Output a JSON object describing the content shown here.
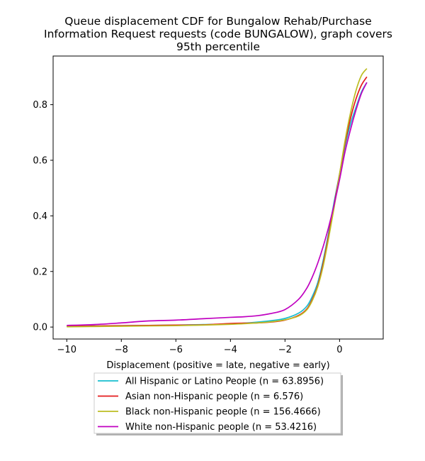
{
  "chart_data": {
    "type": "line",
    "title_lines": [
      "Queue displacement CDF for Bungalow Rehab/Purchase",
      "Information Request  requests (code BUNGALOW), graph covers",
      "95th percentile"
    ],
    "xlabel": "Displacement (positive = late, negative = early)",
    "ylabel": "",
    "xlim": [
      -10.5,
      1.6
    ],
    "ylim": [
      -0.043,
      0.975
    ],
    "xticks": [
      -10,
      -8,
      -6,
      -4,
      -2,
      0
    ],
    "yticks": [
      0.0,
      0.2,
      0.4,
      0.6,
      0.8
    ],
    "grid": false,
    "legend_position": "below-plot",
    "series": [
      {
        "name": "All Hispanic or Latino People (n = 63.8956)",
        "color": "#17becf",
        "x": [
          -10,
          -9,
          -8,
          -7,
          -6,
          -5,
          -4,
          -3.5,
          -3,
          -2.5,
          -2,
          -1.5,
          -1.2,
          -1,
          -0.8,
          -0.6,
          -0.4,
          -0.2,
          0,
          0.2,
          0.4,
          0.6,
          0.8,
          1.0
        ],
        "y": [
          0.003,
          0.004,
          0.005,
          0.006,
          0.007,
          0.009,
          0.011,
          0.014,
          0.018,
          0.023,
          0.031,
          0.05,
          0.075,
          0.11,
          0.16,
          0.24,
          0.34,
          0.45,
          0.55,
          0.65,
          0.73,
          0.79,
          0.845,
          0.88
        ]
      },
      {
        "name": "Asian non-Hispanic people (n = 6.576)",
        "color": "#e41a1c",
        "x": [
          -10,
          -9,
          -8,
          -7,
          -6,
          -5,
          -4,
          -3.5,
          -3,
          -2.5,
          -2,
          -1.5,
          -1.2,
          -1,
          -0.8,
          -0.6,
          -0.4,
          -0.2,
          0,
          0.2,
          0.4,
          0.6,
          0.8,
          1.0
        ],
        "y": [
          0.003,
          0.004,
          0.005,
          0.006,
          0.007,
          0.008,
          0.013,
          0.014,
          0.015,
          0.018,
          0.025,
          0.042,
          0.065,
          0.1,
          0.15,
          0.23,
          0.33,
          0.44,
          0.55,
          0.66,
          0.75,
          0.82,
          0.87,
          0.9
        ]
      },
      {
        "name": "Black non-Hispanic people (n = 156.4666)",
        "color": "#bcbd22",
        "x": [
          -10,
          -9,
          -8,
          -7,
          -6,
          -5,
          -4,
          -3.5,
          -3,
          -2.5,
          -2,
          -1.5,
          -1.2,
          -1,
          -0.8,
          -0.6,
          -0.4,
          -0.2,
          0,
          0.2,
          0.4,
          0.6,
          0.8,
          1.0
        ],
        "y": [
          0.001,
          0.002,
          0.003,
          0.004,
          0.005,
          0.007,
          0.01,
          0.012,
          0.015,
          0.019,
          0.026,
          0.04,
          0.062,
          0.095,
          0.145,
          0.22,
          0.32,
          0.43,
          0.55,
          0.67,
          0.77,
          0.85,
          0.905,
          0.93
        ]
      },
      {
        "name": "White non-Hispanic people (n = 53.4216)",
        "color": "#c000c0",
        "x": [
          -10,
          -9,
          -8,
          -7,
          -6,
          -5,
          -4,
          -3.5,
          -3,
          -2.5,
          -2,
          -1.5,
          -1.2,
          -1,
          -0.8,
          -0.6,
          -0.4,
          -0.2,
          0,
          0.2,
          0.4,
          0.6,
          0.8,
          1.0
        ],
        "y": [
          0.006,
          0.009,
          0.015,
          0.022,
          0.025,
          0.03,
          0.035,
          0.037,
          0.041,
          0.049,
          0.063,
          0.1,
          0.14,
          0.18,
          0.23,
          0.29,
          0.36,
          0.44,
          0.53,
          0.63,
          0.71,
          0.78,
          0.84,
          0.88
        ]
      }
    ]
  }
}
